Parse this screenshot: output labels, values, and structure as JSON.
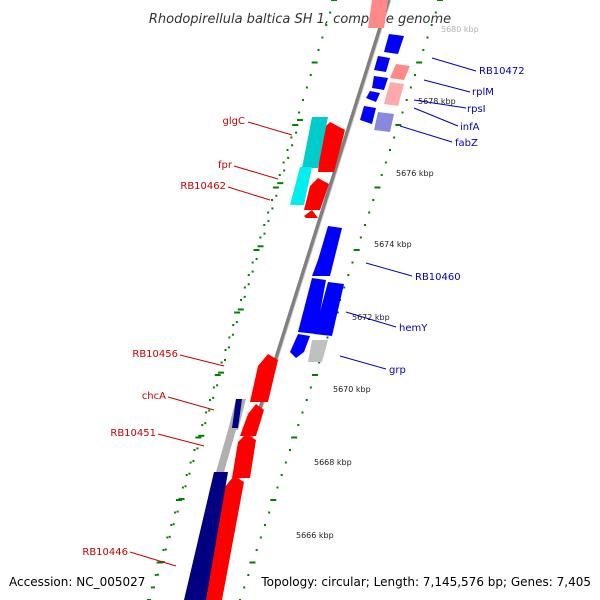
{
  "title": "Rhodopirellula baltica SH 1, complete genome",
  "footer": {
    "accession": "Accession: NC_005027",
    "summary": "Topology: circular; Length: 7,145,576 bp; Genes: 7,405"
  },
  "colors": {
    "forward": "#ff0000",
    "forward_light": "#ff8888",
    "reverse": "#0000ff",
    "reverse_dark": "#000080",
    "reverse_light": "#8888dd",
    "cyan": "#00cccc",
    "gray": "#b0b0b0",
    "backbone": "#808080",
    "tick": "#008000",
    "label_left": "#cc0000",
    "label_right": "#0000cc"
  },
  "scale_labels": [
    "5680 kbp",
    "5678 kbp",
    "5676 kbp",
    "5674 kbp",
    "5672 kbp",
    "5670 kbp",
    "5668 kbp",
    "5666 kbp"
  ],
  "genes_left": [
    "glgC",
    "fpr",
    "RB10462",
    "RB10456",
    "chcA",
    "RB10451",
    "RB10446"
  ],
  "genes_right": [
    "RB10472",
    "rplM",
    "rpsI",
    "infA",
    "fabZ",
    "RB10460",
    "hemY",
    "grp"
  ]
}
